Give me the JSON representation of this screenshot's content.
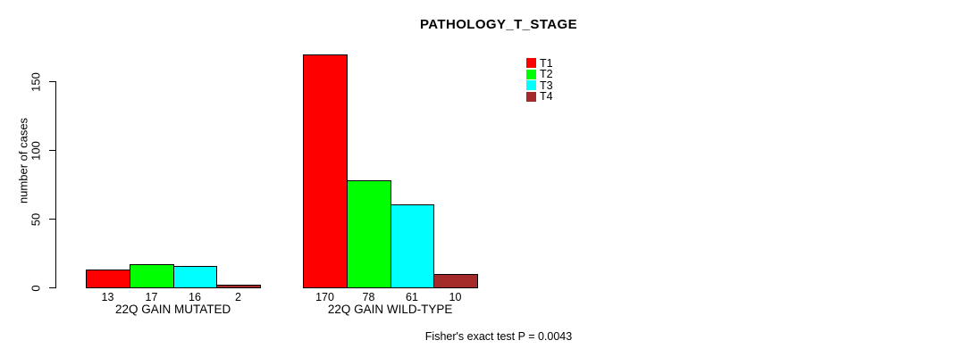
{
  "chart_data": {
    "type": "bar",
    "title": "PATHOLOGY_T_STAGE",
    "ylabel": "number of cases",
    "xlabel": "",
    "categories": [
      "22Q GAIN MUTATED",
      "22Q GAIN WILD-TYPE"
    ],
    "series": [
      {
        "name": "T1",
        "color": "#ff0000",
        "values": [
          13,
          170
        ]
      },
      {
        "name": "T2",
        "color": "#00ff00",
        "values": [
          17,
          78
        ]
      },
      {
        "name": "T3",
        "color": "#00ffff",
        "values": [
          16,
          61
        ]
      },
      {
        "name": "T4",
        "color": "#a52a2a",
        "values": [
          2,
          10
        ]
      }
    ],
    "yticks": [
      0,
      50,
      100,
      150
    ],
    "ylim": [
      0,
      175
    ],
    "grid": false,
    "legend_position": "top-right",
    "show_value_labels": true,
    "annotation": "Fisher's exact test P = 0.0043"
  },
  "colors": {
    "background": "#ffffff",
    "axis": "#000000",
    "text": "#000000"
  }
}
